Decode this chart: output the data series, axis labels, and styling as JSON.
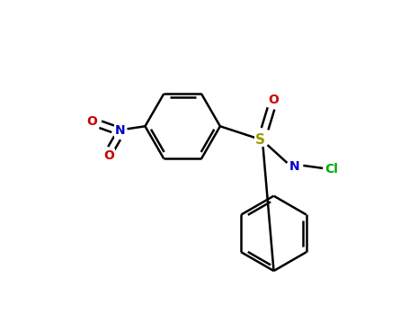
{
  "background_color": "#ffffff",
  "bond_color": "#000000",
  "atom_colors": {
    "N_nitro": "#0000cc",
    "O": "#cc0000",
    "S": "#cccc00",
    "N_sulfoximide": "#0000cc",
    "Cl": "#00aa00"
  },
  "lw": 1.8,
  "fontsize": 9,
  "mol_scale": 0.09
}
